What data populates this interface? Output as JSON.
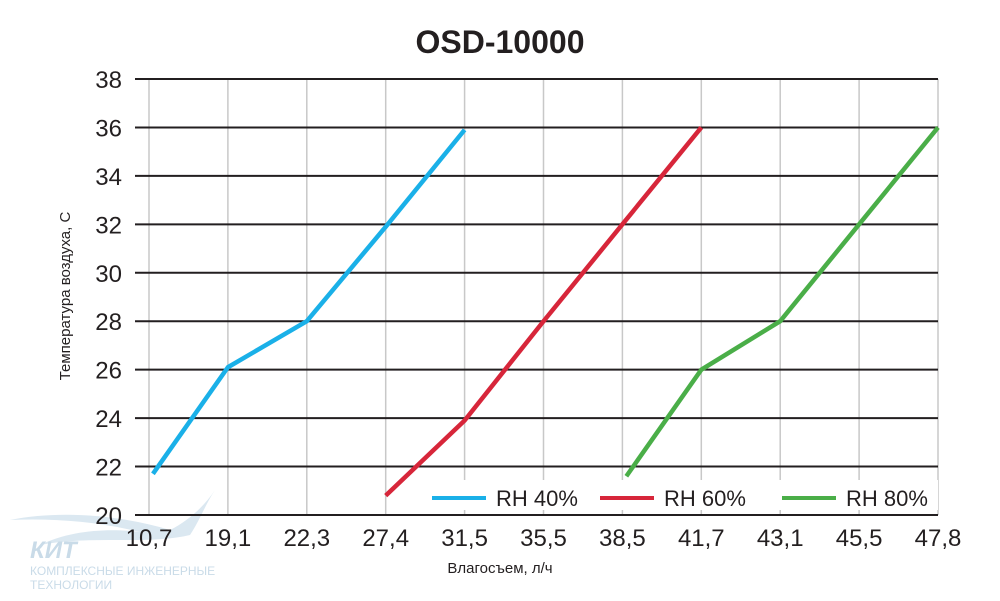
{
  "chart_data": {
    "type": "line",
    "title": "OSD-10000",
    "xlabel": "Влагосъем, л/ч",
    "ylabel": "Температура воздуха, С",
    "categories": [
      "10,7",
      "19,1",
      "22,3",
      "27,4",
      "31,5",
      "35,5",
      "38,5",
      "41,7",
      "43,1",
      "45,5",
      "47,8"
    ],
    "y_ticks": [
      "20",
      "22",
      "24",
      "26",
      "28",
      "30",
      "32",
      "34",
      "36",
      "38"
    ],
    "ylim": [
      20,
      38
    ],
    "grid": "horizontal",
    "legend_position": "bottom-right",
    "series": [
      {
        "name": "RH 40%",
        "color": "#1ab0e8",
        "x": [
          0.05,
          1.0,
          2.0,
          3.0,
          4.0
        ],
        "y": [
          21.7,
          26.1,
          28.0,
          31.9,
          35.9
        ]
      },
      {
        "name": "RH 60%",
        "color": "#d7263a",
        "x": [
          3.0,
          4.0,
          5.0,
          6.0,
          7.0
        ],
        "y": [
          20.8,
          23.9,
          28.0,
          32.0,
          36.0
        ]
      },
      {
        "name": "RH 80%",
        "color": "#4aae48",
        "x": [
          6.05,
          7.0,
          8.0,
          9.0,
          10.0
        ],
        "y": [
          21.6,
          26.0,
          28.0,
          32.0,
          36.0
        ]
      }
    ]
  },
  "logo": {
    "name": "КИТ",
    "line1": "КОМПЛЕКСНЫЕ ИНЖЕНЕРНЫЕ",
    "line2": "ТЕХНОЛОГИИ"
  }
}
